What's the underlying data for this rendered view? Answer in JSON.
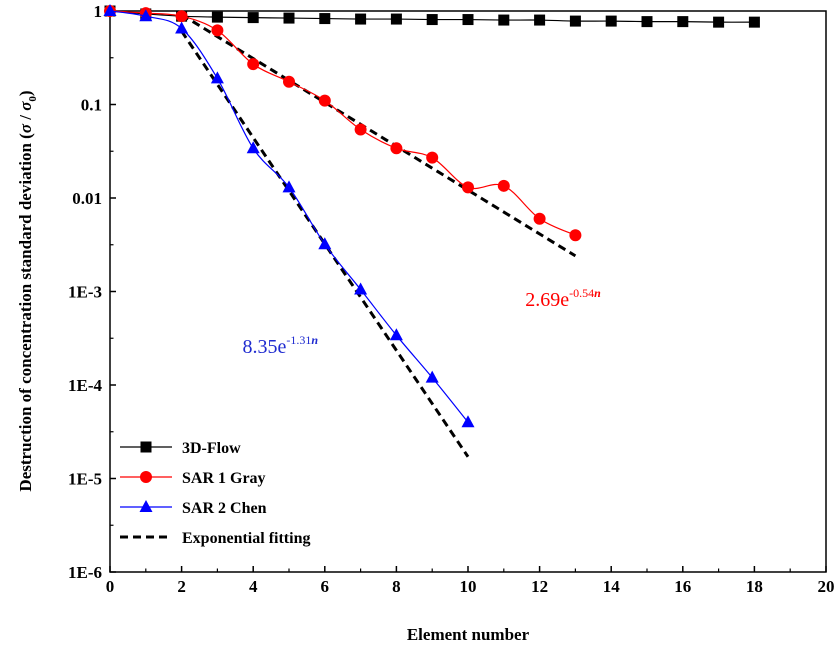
{
  "chart_data": {
    "type": "line",
    "xlabel": "Element number",
    "ylabel": "Destruction of concentration standard deviation (σ / σ₀)",
    "ylabel_main": "Destruction of concentration standard deviation (",
    "ylabel_sigma": "σ",
    "ylabel_slash": " / ",
    "ylabel_sigma0": "σ",
    "ylabel_sub": "0",
    "ylabel_close": ")",
    "xlim": [
      0,
      20
    ],
    "ylim": [
      1e-06,
      1
    ],
    "yscale": "log",
    "x_ticks": [
      "0",
      "2",
      "4",
      "6",
      "8",
      "10",
      "12",
      "14",
      "16",
      "18",
      "20"
    ],
    "y_ticks": [
      "1E-6",
      "1E-5",
      "1E-4",
      "1E-3",
      "0.01",
      "0.1",
      "1"
    ],
    "legend_position": "bottom-left",
    "series": [
      {
        "name": "3D-Flow",
        "color": "#000000",
        "marker": "square",
        "x": [
          0,
          1,
          2,
          3,
          4,
          5,
          6,
          7,
          8,
          9,
          10,
          11,
          12,
          13,
          14,
          15,
          16,
          17,
          18
        ],
        "y": [
          1.0,
          0.93,
          0.88,
          0.86,
          0.85,
          0.84,
          0.83,
          0.82,
          0.82,
          0.81,
          0.81,
          0.8,
          0.8,
          0.78,
          0.78,
          0.77,
          0.77,
          0.76,
          0.76
        ]
      },
      {
        "name": "SAR 1 Gray",
        "color": "#ff0000",
        "marker": "circle",
        "x": [
          0,
          1,
          2,
          3,
          4,
          5,
          6,
          7,
          8,
          9,
          10,
          11,
          12,
          13
        ],
        "y": [
          1.0,
          0.95,
          0.88,
          0.62,
          0.27,
          0.175,
          0.11,
          0.054,
          0.034,
          0.027,
          0.013,
          0.0135,
          0.006,
          0.004
        ]
      },
      {
        "name": "SAR 2 Chen",
        "color": "#0000ff",
        "marker": "triangle",
        "x": [
          0,
          1,
          2,
          3,
          4,
          5,
          6,
          7,
          8,
          9,
          10
        ],
        "y": [
          1.0,
          0.88,
          0.65,
          0.19,
          0.034,
          0.013,
          0.0032,
          0.00105,
          0.00034,
          0.00012,
          4e-05
        ]
      },
      {
        "name": "Exponential fitting",
        "color": "#000000",
        "marker": "none",
        "dashed": true,
        "fits": [
          {
            "a": 2.69,
            "b": 0.54,
            "x_start": 2,
            "x_end": 13
          },
          {
            "a": 8.35,
            "b": 1.31,
            "x_start": 2,
            "x_end": 10
          }
        ]
      }
    ],
    "annotations": [
      {
        "base": "2.69e",
        "exp": "-0.54",
        "var": "n",
        "color": "#ff0000",
        "x": 11.6,
        "y": 0.0007
      },
      {
        "base": "8.35e",
        "exp": "-1.31",
        "var": "n",
        "color": "#1f2bd0",
        "x": 3.7,
        "y": 0.00022
      }
    ]
  }
}
